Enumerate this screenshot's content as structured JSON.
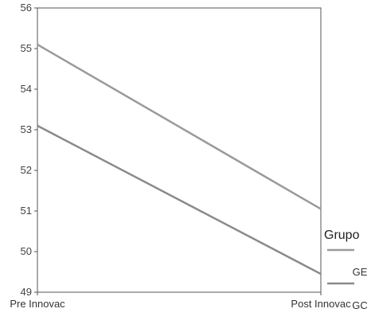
{
  "chart_data": {
    "type": "line",
    "categories": [
      "Pre Innovac",
      "Post Innovac"
    ],
    "ylim": [
      49,
      56
    ],
    "yticks": [
      49,
      50,
      51,
      52,
      53,
      54,
      55,
      56
    ],
    "grid": false,
    "legend": {
      "title": "Grupo",
      "placement": "right"
    },
    "series": [
      {
        "name": "GE",
        "values": [
          55.1,
          51.05
        ],
        "color": "#9a9a9a"
      },
      {
        "name": "GC",
        "values": [
          53.1,
          49.45
        ],
        "color": "#8a8a8a"
      }
    ]
  }
}
